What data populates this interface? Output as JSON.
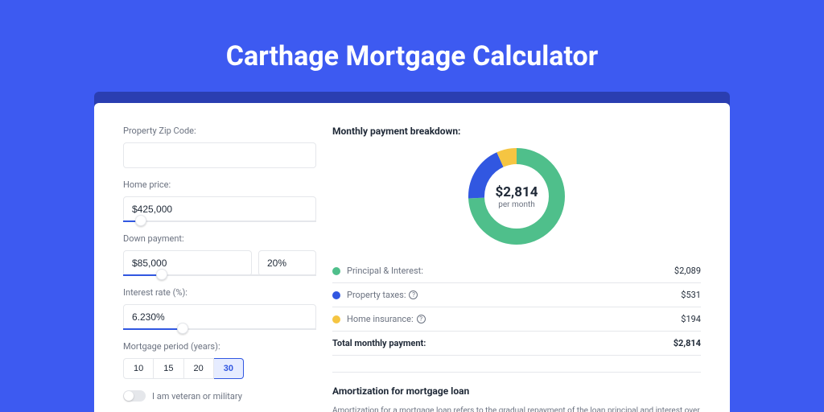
{
  "colors": {
    "bg_outer": "#3d5af1",
    "band": "#2a3eb1",
    "panel": "#ffffff",
    "text": "#1f2937",
    "muted": "#6b7280",
    "border": "#e5e7eb",
    "segment1": "#4fbf8b",
    "segment2": "#3157e1",
    "segment3": "#f5c542",
    "period_active": "#e6ecff"
  },
  "title": "Carthage Mortgage Calculator",
  "form": {
    "zip_label": "Property Zip Code:",
    "zip_value": "",
    "home_price_label": "Home price:",
    "home_price_value": "$425,000",
    "home_price_slider_pct": 9,
    "down_payment_label": "Down payment:",
    "down_payment_value": "$85,000",
    "down_payment_pct": "20%",
    "down_payment_slider_pct": 20,
    "interest_label": "Interest rate (%):",
    "interest_value": "6.230%",
    "interest_slider_pct": 31,
    "period_label": "Mortgage period (years):",
    "periods": [
      "10",
      "15",
      "20",
      "30"
    ],
    "period_active": "30",
    "veteran_label": "I am veteran or military"
  },
  "breakdown": {
    "heading": "Monthly payment breakdown:",
    "center_amount": "$2,814",
    "center_sub": "per month",
    "segments": [
      {
        "label": "Principal & Interest:",
        "value": "$2,089",
        "frac": 0.742,
        "info": false
      },
      {
        "label": "Property taxes:",
        "value": "$531",
        "frac": 0.189,
        "info": true
      },
      {
        "label": "Home insurance:",
        "value": "$194",
        "frac": 0.069,
        "info": true
      }
    ],
    "total_label": "Total monthly payment:",
    "total_value": "$2,814"
  },
  "amort": {
    "heading": "Amortization for mortgage loan",
    "text": "Amortization for a mortgage loan refers to the gradual repayment of the loan principal and interest over a specified"
  },
  "donut": {
    "radius": 50,
    "stroke": 20
  }
}
